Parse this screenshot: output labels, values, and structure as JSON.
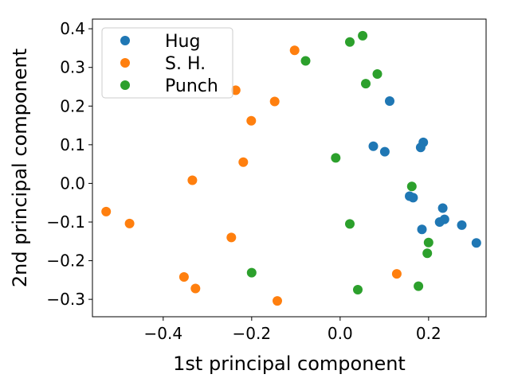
{
  "chart_data": {
    "type": "scatter",
    "xlabel": "1st principal component",
    "ylabel": "2nd principal component",
    "xlim": [
      -0.56,
      0.33
    ],
    "ylim": [
      -0.345,
      0.425
    ],
    "xticks": [
      -0.4,
      -0.2,
      0.0,
      0.2
    ],
    "xtick_labels": [
      "−0.4",
      "−0.2",
      "0.0",
      "0.2"
    ],
    "yticks": [
      -0.3,
      -0.2,
      -0.1,
      0.0,
      0.1,
      0.2,
      0.3,
      0.4
    ],
    "ytick_labels": [
      "−0.3",
      "−0.2",
      "−0.1",
      "0.0",
      "0.1",
      "0.2",
      "0.3",
      "0.4"
    ],
    "grid": false,
    "legend_position": "top-left",
    "series": [
      {
        "name": "Hug",
        "color": "#1f77b4",
        "points": [
          [
            0.112,
            0.213
          ],
          [
            0.188,
            0.106
          ],
          [
            0.182,
            0.093
          ],
          [
            0.075,
            0.096
          ],
          [
            0.101,
            0.082
          ],
          [
            0.157,
            -0.033
          ],
          [
            0.165,
            -0.037
          ],
          [
            0.232,
            -0.064
          ],
          [
            0.236,
            -0.093
          ],
          [
            0.225,
            -0.1
          ],
          [
            0.275,
            -0.108
          ],
          [
            0.185,
            -0.119
          ],
          [
            0.308,
            -0.154
          ]
        ]
      },
      {
        "name": "S. H.",
        "color": "#ff7f0e",
        "points": [
          [
            -0.103,
            0.344
          ],
          [
            -0.236,
            0.241
          ],
          [
            -0.148,
            0.212
          ],
          [
            -0.201,
            0.162
          ],
          [
            -0.219,
            0.055
          ],
          [
            -0.334,
            0.008
          ],
          [
            -0.529,
            -0.073
          ],
          [
            -0.476,
            -0.104
          ],
          [
            -0.246,
            -0.14
          ],
          [
            -0.353,
            -0.242
          ],
          [
            -0.327,
            -0.272
          ],
          [
            -0.142,
            -0.304
          ],
          [
            0.128,
            -0.234
          ]
        ]
      },
      {
        "name": "Punch",
        "color": "#2ca02c",
        "points": [
          [
            0.051,
            0.382
          ],
          [
            0.022,
            0.366
          ],
          [
            -0.078,
            0.317
          ],
          [
            0.084,
            0.283
          ],
          [
            0.058,
            0.258
          ],
          [
            -0.01,
            0.066
          ],
          [
            0.162,
            -0.008
          ],
          [
            0.022,
            -0.105
          ],
          [
            0.2,
            -0.153
          ],
          [
            0.197,
            -0.181
          ],
          [
            -0.2,
            -0.231
          ],
          [
            0.04,
            -0.275
          ],
          [
            0.177,
            -0.266
          ]
        ]
      }
    ]
  }
}
